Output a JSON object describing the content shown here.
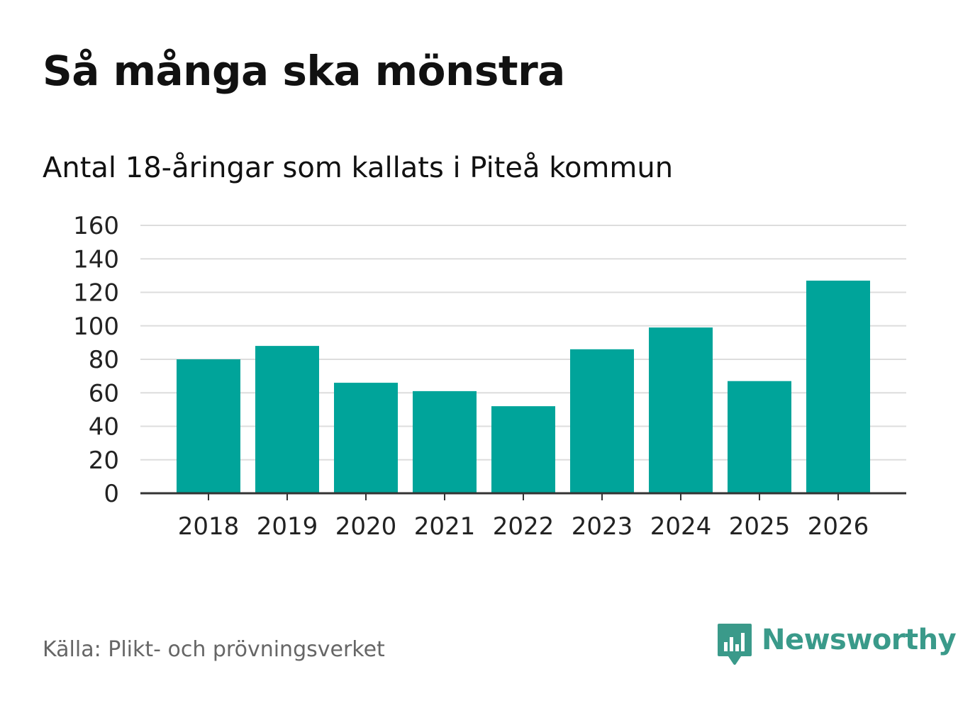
{
  "title": "Så många ska mönstra",
  "subtitle": "Antal 18-åringar som kallats i Piteå kommun",
  "source": "Källa: Plikt- och prövningsverket",
  "brand": "Newsworthy",
  "colors": {
    "bar": "#00a49a",
    "grid": "#dddddd",
    "axis": "#333333",
    "brand": "#3a9a8a"
  },
  "chart_data": {
    "type": "bar",
    "title": "Så många ska mönstra",
    "subtitle": "Antal 18-åringar som kallats i Piteå kommun",
    "xlabel": "",
    "ylabel": "",
    "categories": [
      "2018",
      "2019",
      "2020",
      "2021",
      "2022",
      "2023",
      "2024",
      "2025",
      "2026"
    ],
    "values": [
      80,
      88,
      66,
      61,
      52,
      86,
      99,
      67,
      127
    ],
    "ylim": [
      0,
      160
    ],
    "yticks": [
      "0",
      "20",
      "40",
      "60",
      "80",
      "100",
      "120",
      "140",
      "160"
    ],
    "grid": true
  }
}
